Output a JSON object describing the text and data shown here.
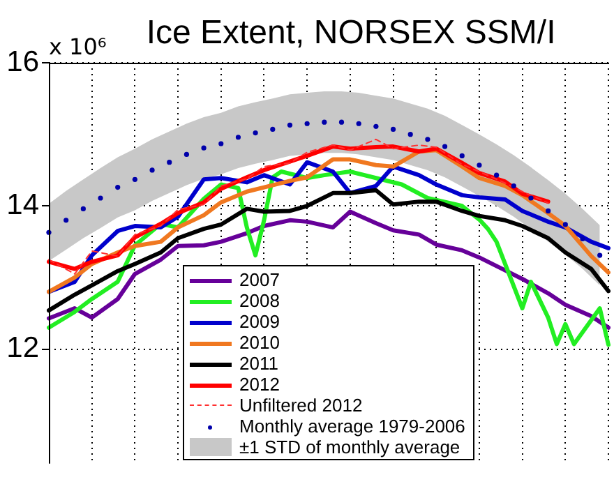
{
  "chart_data": {
    "type": "line",
    "title": "Ice Extent, NORSEX SSM/I",
    "ylabel": "x 10⁶",
    "categories": [
      null,
      null,
      null,
      null,
      null,
      null,
      null,
      null,
      null,
      null,
      null,
      null,
      null,
      null,
      null,
      null,
      null,
      null,
      null,
      null,
      null,
      null,
      null,
      null,
      null,
      null,
      null,
      null,
      null,
      null,
      null,
      null,
      null,
      null,
      null,
      null,
      null,
      null,
      null,
      null,
      null,
      null,
      null,
      null,
      null,
      null,
      null,
      null,
      null,
      null,
      null,
      null,
      null,
      null,
      null,
      null,
      null,
      null,
      null,
      null,
      null,
      null,
      null,
      null,
      null,
      null
    ],
    "ylim": [
      10.4,
      16
    ],
    "yticks": [
      {
        "value": 12,
        "label": "12"
      },
      {
        "value": 14,
        "label": "14"
      },
      {
        "value": 16,
        "label": "16"
      }
    ],
    "tick_labels": "y",
    "grid": true,
    "legend": "bottom",
    "series": [
      {
        "name": "2007",
        "color": "#660099",
        "values": [
          12.43,
          null,
          null,
          12.57,
          null,
          12.44,
          null,
          null,
          12.7,
          null,
          13.05,
          null,
          null,
          13.25,
          null,
          13.44,
          null,
          null,
          13.45,
          null,
          13.5,
          null,
          null,
          13.62,
          null,
          13.72,
          null,
          null,
          13.8,
          null,
          13.78,
          null,
          null,
          13.7,
          null,
          13.92,
          null,
          null,
          13.76,
          null,
          13.66,
          null,
          null,
          13.6,
          null,
          13.46,
          null,
          null,
          13.38,
          null,
          13.28,
          null,
          null,
          13.1,
          null,
          12.98,
          null,
          null,
          12.78,
          null,
          12.62,
          null,
          null,
          12.46,
          null,
          12.3
        ]
      },
      {
        "name": "2008",
        "color": "#22ee22",
        "values": [
          12.3,
          null,
          null,
          12.52,
          null,
          12.7,
          null,
          null,
          12.94,
          null,
          13.45,
          null,
          null,
          13.75,
          null,
          13.7,
          null,
          null,
          14.1,
          null,
          14.3,
          null,
          14.25,
          13.7,
          13.31,
          13.8,
          14.4,
          14.48,
          null,
          null,
          14.39,
          null,
          14.43,
          null,
          null,
          14.48,
          null,
          null,
          14.39,
          null,
          null,
          14.3,
          null,
          null,
          14.11,
          null,
          null,
          null,
          14.0,
          null,
          13.81,
          13.68,
          13.5,
          13.19,
          null,
          12.57,
          12.94,
          null,
          12.44,
          12.07,
          12.35,
          12.07,
          null,
          null,
          12.57,
          12.06
        ]
      },
      {
        "name": "2009",
        "color": "#0000cc",
        "values": [
          12.8,
          null,
          null,
          12.94,
          null,
          13.31,
          null,
          null,
          13.65,
          null,
          13.72,
          null,
          null,
          13.7,
          null,
          13.85,
          null,
          null,
          14.37,
          null,
          14.39,
          null,
          null,
          14.33,
          null,
          14.43,
          null,
          null,
          14.3,
          null,
          14.61,
          null,
          null,
          14.48,
          null,
          14.18,
          null,
          null,
          14.28,
          null,
          14.55,
          null,
          null,
          14.43,
          null,
          14.3,
          null,
          null,
          14.15,
          null,
          14.12,
          null,
          null,
          14.09,
          null,
          13.93,
          null,
          null,
          13.78,
          null,
          13.7,
          null,
          null,
          13.5,
          null,
          13.41
        ]
      },
      {
        "name": "2010",
        "color": "#f07820",
        "values": [
          12.8,
          null,
          null,
          13.0,
          null,
          13.19,
          null,
          null,
          13.35,
          null,
          13.44,
          null,
          null,
          13.5,
          null,
          13.7,
          null,
          null,
          13.87,
          null,
          14.05,
          null,
          null,
          14.2,
          null,
          14.26,
          null,
          null,
          14.35,
          null,
          14.4,
          null,
          null,
          14.65,
          null,
          14.65,
          null,
          null,
          14.57,
          null,
          14.55,
          null,
          null,
          14.76,
          null,
          14.78,
          null,
          null,
          14.55,
          null,
          14.39,
          null,
          null,
          14.28,
          null,
          14.15,
          null,
          null,
          13.9,
          null,
          13.72,
          null,
          null,
          13.3,
          null,
          13.07
        ]
      },
      {
        "name": "2011",
        "color": "#000000",
        "values": [
          12.54,
          null,
          null,
          12.76,
          null,
          12.89,
          null,
          null,
          13.09,
          null,
          13.19,
          null,
          null,
          13.35,
          null,
          13.55,
          null,
          null,
          13.68,
          null,
          13.74,
          null,
          null,
          13.96,
          null,
          13.92,
          null,
          null,
          13.93,
          null,
          14.0,
          null,
          null,
          14.18,
          null,
          14.18,
          null,
          null,
          14.22,
          null,
          14.02,
          null,
          null,
          14.06,
          null,
          14.06,
          null,
          null,
          13.93,
          null,
          13.86,
          null,
          null,
          13.8,
          null,
          13.72,
          null,
          null,
          13.55,
          null,
          13.35,
          null,
          null,
          13.12,
          null,
          12.81
        ]
      },
      {
        "name": "2012",
        "color": "#ff0000",
        "values": [
          13.22,
          null,
          null,
          13.12,
          null,
          13.22,
          null,
          null,
          13.31,
          null,
          13.56,
          null,
          null,
          13.75,
          null,
          13.9,
          null,
          null,
          14.05,
          null,
          14.24,
          null,
          null,
          14.4,
          null,
          14.5,
          null,
          null,
          14.62,
          null,
          14.7,
          null,
          null,
          14.83,
          null,
          14.8,
          null,
          null,
          14.82,
          null,
          14.83,
          null,
          null,
          14.76,
          null,
          14.8,
          null,
          null,
          14.6,
          null,
          14.46,
          null,
          null,
          14.34,
          null,
          14.17,
          null,
          null,
          14.06,
          null,
          null,
          null,
          null,
          null,
          null,
          null
        ]
      },
      {
        "name": "Unfiltered 2012",
        "line_style": "dashed",
        "color": "#ff3030",
        "values": [
          13.25,
          null,
          null,
          13.05,
          null,
          13.37,
          null,
          null,
          13.3,
          null,
          13.6,
          null,
          null,
          13.72,
          null,
          13.95,
          null,
          null,
          14.02,
          null,
          14.28,
          null,
          null,
          14.38,
          null,
          14.55,
          null,
          null,
          14.6,
          null,
          14.75,
          null,
          null,
          14.85,
          null,
          14.78,
          null,
          null,
          14.93,
          null,
          14.8,
          null,
          null,
          14.85,
          null,
          14.82,
          null,
          null,
          14.58,
          null,
          14.48,
          null,
          null,
          14.32,
          null,
          14.2,
          null,
          null,
          14.04,
          null,
          null,
          null,
          null,
          null,
          null,
          null
        ]
      },
      {
        "name": "Monthly average 1979-2006",
        "type": "scatter",
        "marker": "circle",
        "color": "#0000aa",
        "values": [
          13.63,
          null,
          13.8,
          null,
          13.96,
          null,
          14.11,
          null,
          14.26,
          null,
          14.37,
          null,
          14.5,
          null,
          14.61,
          null,
          14.72,
          null,
          14.81,
          null,
          14.87,
          null,
          14.96,
          null,
          15.02,
          null,
          15.07,
          null,
          15.13,
          null,
          15.15,
          null,
          15.17,
          null,
          15.17,
          null,
          15.15,
          null,
          15.11,
          null,
          15.07,
          null,
          15.0,
          null,
          14.93,
          null,
          14.83,
          null,
          14.7,
          null,
          14.57,
          null,
          14.43,
          null,
          14.28,
          null,
          14.11,
          null,
          13.93,
          null,
          13.74,
          null,
          13.54,
          null,
          13.31,
          null
        ],
        "upper": [
          14.03,
          null,
          14.21,
          null,
          14.37,
          null,
          14.53,
          null,
          14.68,
          null,
          14.8,
          null,
          14.93,
          null,
          15.04,
          null,
          15.15,
          null,
          15.24,
          null,
          15.3,
          null,
          15.39,
          null,
          15.45,
          null,
          15.5,
          null,
          15.56,
          null,
          15.58,
          null,
          15.6,
          null,
          15.6,
          null,
          15.58,
          null,
          15.54,
          null,
          15.5,
          null,
          15.43,
          null,
          15.36,
          null,
          15.26,
          null,
          15.13,
          null,
          15.0,
          null,
          14.86,
          null,
          14.71,
          null,
          14.54,
          null,
          14.36,
          null,
          14.17,
          null,
          13.96,
          null,
          13.73,
          null
        ],
        "lower": [
          13.23,
          null,
          13.39,
          null,
          13.55,
          null,
          13.69,
          null,
          13.84,
          null,
          13.94,
          null,
          14.07,
          null,
          14.18,
          null,
          14.29,
          null,
          14.38,
          null,
          14.44,
          null,
          14.53,
          null,
          14.59,
          null,
          14.64,
          null,
          14.7,
          null,
          14.72,
          null,
          14.74,
          null,
          14.74,
          null,
          14.72,
          null,
          14.68,
          null,
          14.64,
          null,
          14.57,
          null,
          14.5,
          null,
          14.4,
          null,
          14.27,
          null,
          14.14,
          null,
          14.0,
          null,
          13.85,
          null,
          13.68,
          null,
          13.5,
          null,
          13.32,
          null,
          13.12,
          null,
          12.89,
          null
        ]
      }
    ],
    "annotations": [
      "±1 STD of monthly average"
    ]
  }
}
